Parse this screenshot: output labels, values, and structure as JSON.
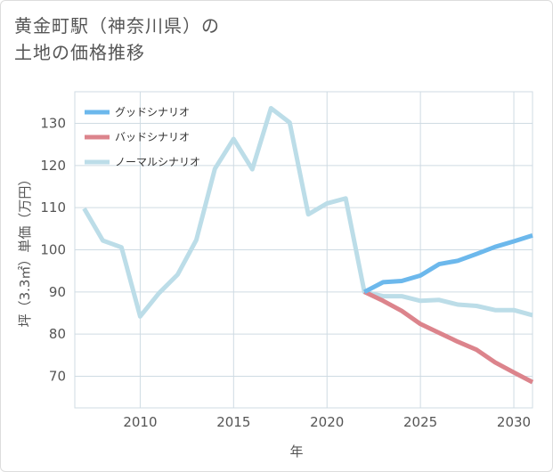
{
  "title": {
    "line1": "黄金町駅（神奈川県）の",
    "line2": "土地の価格推移"
  },
  "chart_data": {
    "type": "line",
    "title": "黄金町駅（神奈川県）の土地の価格推移",
    "xlabel": "年",
    "ylabel": "坪（3.3㎡）単価（万円）",
    "xlim": [
      2006.5,
      2031
    ],
    "ylim": [
      62.5,
      137.5
    ],
    "xticks": [
      2010,
      2015,
      2020,
      2025,
      2030
    ],
    "yticks": [
      70,
      80,
      90,
      100,
      110,
      120,
      130
    ],
    "grid": true,
    "legend_position": "top-left",
    "series": [
      {
        "name": "グッドシナリオ",
        "color": "#6cb8ec",
        "x": [
          2022,
          2023,
          2024,
          2025,
          2026,
          2027,
          2028,
          2029,
          2030,
          2031
        ],
        "values": [
          90.0,
          92.3,
          92.6,
          93.9,
          96.6,
          97.4,
          99.0,
          100.7,
          102.0,
          103.4
        ]
      },
      {
        "name": "バッドシナリオ",
        "color": "#dc848c",
        "x": [
          2022,
          2023,
          2024,
          2025,
          2026,
          2027,
          2028,
          2029,
          2030,
          2031
        ],
        "values": [
          90.0,
          87.9,
          85.5,
          82.4,
          80.3,
          78.2,
          76.3,
          73.3,
          70.9,
          68.6
        ]
      },
      {
        "name": "ノーマルシナリオ",
        "color": "#bcdde8",
        "x": [
          2007,
          2008,
          2009,
          2010,
          2011,
          2012,
          2013,
          2014,
          2015,
          2016,
          2017,
          2018,
          2019,
          2020,
          2021,
          2022,
          2023,
          2024,
          2025,
          2026,
          2027,
          2028,
          2029,
          2030,
          2031
        ],
        "values": [
          109.8,
          102.2,
          100.6,
          84.2,
          89.7,
          94.1,
          102.3,
          119.2,
          126.3,
          119.1,
          133.6,
          130.2,
          108.4,
          111.0,
          112.2,
          90.0,
          89.0,
          89.0,
          87.9,
          88.1,
          87.0,
          86.7,
          85.7,
          85.7,
          84.5
        ]
      }
    ]
  }
}
